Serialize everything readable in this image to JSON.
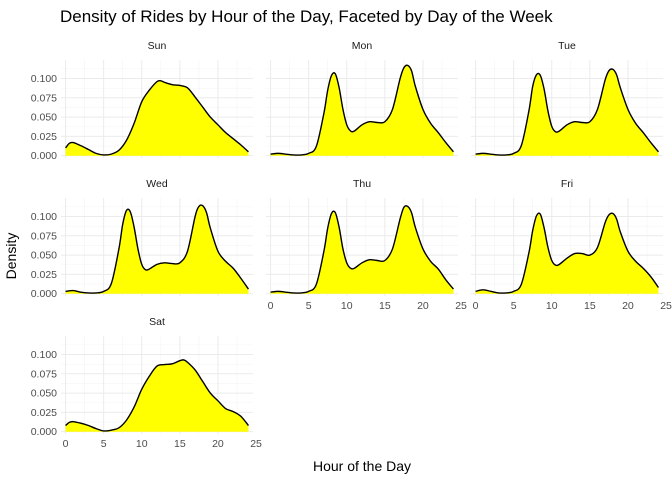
{
  "chart_data": {
    "type": "area",
    "title": "Density of Rides by Hour of the Day, Faceted by Day of the Week",
    "xlabel": "Hour of the Day",
    "ylabel": "Density",
    "xlim": [
      0,
      24
    ],
    "ylim": [
      0,
      0.12
    ],
    "x_ticks": [
      0,
      5,
      10,
      15,
      20,
      25
    ],
    "y_ticks": [
      0.0,
      0.025,
      0.05,
      0.075,
      0.1
    ],
    "y_tick_labels": [
      "0.000",
      "0.025",
      "0.050",
      "0.075",
      "0.100"
    ],
    "fill_color": "#ffff00",
    "line_color": "#000000",
    "grid": true,
    "panels": [
      {
        "day": "Sun",
        "x": [
          0,
          0.5,
          1,
          2,
          3,
          4,
          5,
          6,
          7,
          8,
          9,
          10,
          11,
          12,
          12.5,
          13,
          14,
          15,
          16,
          17,
          18,
          19,
          20,
          21,
          22,
          23,
          24
        ],
        "y": [
          0.01,
          0.016,
          0.017,
          0.013,
          0.008,
          0.003,
          0.001,
          0.002,
          0.007,
          0.02,
          0.042,
          0.07,
          0.085,
          0.096,
          0.097,
          0.095,
          0.092,
          0.091,
          0.088,
          0.076,
          0.063,
          0.05,
          0.04,
          0.03,
          0.022,
          0.014,
          0.005
        ]
      },
      {
        "day": "Mon",
        "x": [
          0,
          1,
          2,
          3,
          4,
          5,
          6,
          7,
          7.5,
          8,
          8.5,
          9,
          9.5,
          10,
          10.5,
          11,
          12,
          13,
          14,
          15,
          16,
          17,
          17.5,
          18,
          18.5,
          19,
          20,
          21,
          22,
          23,
          24
        ],
        "y": [
          0.002,
          0.003,
          0.002,
          0.001,
          0.001,
          0.003,
          0.012,
          0.055,
          0.085,
          0.104,
          0.106,
          0.088,
          0.06,
          0.04,
          0.032,
          0.032,
          0.04,
          0.044,
          0.043,
          0.044,
          0.06,
          0.1,
          0.114,
          0.117,
          0.11,
          0.09,
          0.06,
          0.042,
          0.03,
          0.017,
          0.005
        ]
      },
      {
        "day": "Tue",
        "x": [
          0,
          1,
          2,
          3,
          4,
          5,
          6,
          7,
          7.5,
          8,
          8.5,
          9,
          9.5,
          10,
          10.5,
          11,
          12,
          13,
          14,
          15,
          16,
          17,
          17.5,
          18,
          18.5,
          19,
          20,
          21,
          22,
          23,
          24
        ],
        "y": [
          0.002,
          0.003,
          0.002,
          0.001,
          0.001,
          0.003,
          0.013,
          0.058,
          0.09,
          0.105,
          0.104,
          0.086,
          0.058,
          0.038,
          0.031,
          0.032,
          0.04,
          0.044,
          0.043,
          0.044,
          0.06,
          0.098,
          0.11,
          0.112,
          0.105,
          0.088,
          0.06,
          0.042,
          0.03,
          0.017,
          0.005
        ]
      },
      {
        "day": "Wed",
        "x": [
          0,
          1,
          2,
          3,
          4,
          5,
          6,
          7,
          7.5,
          8,
          8.5,
          9,
          9.5,
          10,
          10.5,
          11,
          12,
          13,
          14,
          15,
          16,
          17,
          17.5,
          18,
          18.5,
          19,
          20,
          21,
          22,
          23,
          24
        ],
        "y": [
          0.003,
          0.004,
          0.002,
          0.001,
          0.001,
          0.003,
          0.013,
          0.058,
          0.09,
          0.108,
          0.106,
          0.086,
          0.058,
          0.038,
          0.031,
          0.032,
          0.038,
          0.04,
          0.039,
          0.04,
          0.055,
          0.1,
          0.113,
          0.114,
          0.105,
          0.085,
          0.055,
          0.042,
          0.033,
          0.02,
          0.006
        ]
      },
      {
        "day": "Thu",
        "x": [
          0,
          1,
          2,
          3,
          4,
          5,
          6,
          7,
          7.5,
          8,
          8.5,
          9,
          9.5,
          10,
          10.5,
          11,
          12,
          13,
          14,
          15,
          16,
          17,
          17.5,
          18,
          18.5,
          19,
          20,
          21,
          22,
          23,
          24
        ],
        "y": [
          0.002,
          0.003,
          0.002,
          0.001,
          0.001,
          0.003,
          0.012,
          0.055,
          0.085,
          0.104,
          0.105,
          0.086,
          0.058,
          0.04,
          0.033,
          0.033,
          0.04,
          0.044,
          0.043,
          0.043,
          0.058,
          0.097,
          0.112,
          0.113,
          0.105,
          0.086,
          0.058,
          0.042,
          0.032,
          0.018,
          0.006
        ]
      },
      {
        "day": "Fri",
        "x": [
          0,
          1,
          2,
          3,
          4,
          5,
          6,
          7,
          7.5,
          8,
          8.5,
          9,
          9.5,
          10,
          10.5,
          11,
          12,
          13,
          14,
          15,
          16,
          17,
          17.5,
          18,
          18.5,
          19,
          20,
          21,
          22,
          23,
          24
        ],
        "y": [
          0.003,
          0.005,
          0.003,
          0.001,
          0.001,
          0.003,
          0.012,
          0.053,
          0.082,
          0.101,
          0.103,
          0.085,
          0.06,
          0.043,
          0.037,
          0.038,
          0.046,
          0.052,
          0.052,
          0.05,
          0.06,
          0.092,
          0.102,
          0.104,
          0.097,
          0.08,
          0.055,
          0.042,
          0.033,
          0.022,
          0.008
        ]
      },
      {
        "day": "Sat",
        "x": [
          0,
          0.5,
          1,
          2,
          3,
          4,
          5,
          6,
          7,
          8,
          9,
          10,
          11,
          12,
          13,
          14,
          15,
          15.5,
          16,
          17,
          18,
          19,
          20,
          21,
          22,
          23,
          24
        ],
        "y": [
          0.008,
          0.012,
          0.013,
          0.011,
          0.008,
          0.004,
          0.001,
          0.002,
          0.005,
          0.015,
          0.032,
          0.055,
          0.072,
          0.085,
          0.087,
          0.088,
          0.092,
          0.093,
          0.09,
          0.08,
          0.065,
          0.05,
          0.04,
          0.03,
          0.026,
          0.02,
          0.008
        ]
      }
    ]
  }
}
